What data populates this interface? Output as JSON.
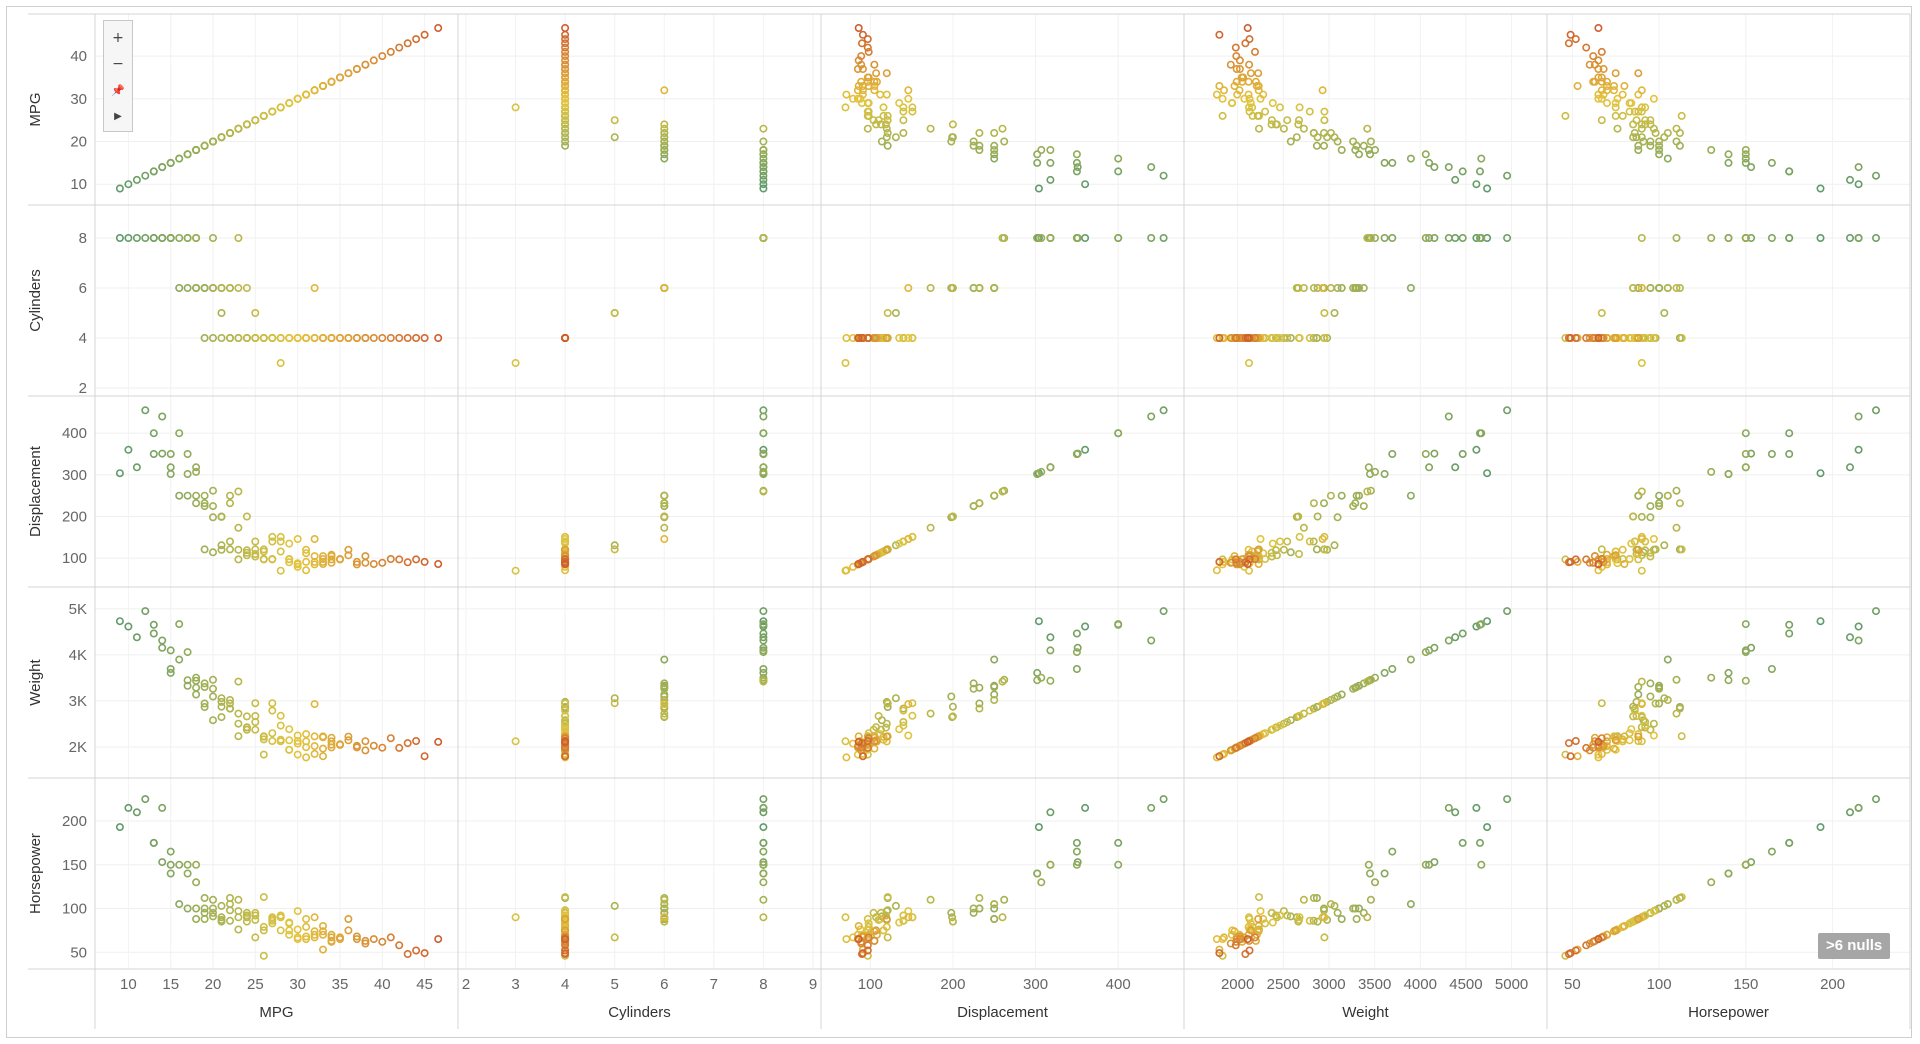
{
  "chart_data": {
    "type": "scatter",
    "layout": "scatterplot-matrix",
    "variables": [
      {
        "name": "MPG",
        "range": [
          7,
          48
        ],
        "ticks": [
          10,
          20,
          30,
          40
        ],
        "tick_labels": [
          "10",
          "20",
          "30",
          "40"
        ],
        "x_range": [
          7,
          48
        ],
        "x_ticks": [
          10,
          15,
          20,
          25,
          30,
          35,
          40,
          45
        ],
        "x_tick_labels": [
          "10",
          "15",
          "20",
          "25",
          "30",
          "35",
          "40",
          "45"
        ]
      },
      {
        "name": "Cylinders",
        "range": [
          2,
          9
        ],
        "ticks": [
          2,
          4,
          6,
          8
        ],
        "tick_labels": [
          "2",
          "4",
          "6",
          "8"
        ],
        "x_range": [
          2,
          9
        ],
        "x_ticks": [
          2,
          3,
          4,
          5,
          6,
          7,
          8,
          9
        ],
        "x_tick_labels": [
          "2",
          "3",
          "4",
          "5",
          "6",
          "7",
          "8",
          "9"
        ]
      },
      {
        "name": "Displacement",
        "range": [
          50,
          470
        ],
        "ticks": [
          100,
          200,
          300,
          400
        ],
        "tick_labels": [
          "100",
          "200",
          "300",
          "400"
        ],
        "x_range": [
          50,
          470
        ],
        "x_ticks": [
          100,
          200,
          300,
          400
        ],
        "x_tick_labels": [
          "100",
          "200",
          "300",
          "400"
        ]
      },
      {
        "name": "Weight",
        "range": [
          1500,
          5300
        ],
        "ticks": [
          2000,
          3000,
          4000,
          5000
        ],
        "tick_labels": [
          "2K",
          "3K",
          "4K",
          "5K"
        ],
        "x_range": [
          1500,
          5300
        ],
        "x_ticks": [
          2000,
          2500,
          3000,
          3500,
          4000,
          4500,
          5000
        ],
        "x_tick_labels": [
          "2000",
          "2500",
          "3000",
          "3500",
          "4000",
          "4500",
          "5000"
        ]
      },
      {
        "name": "Horsepower",
        "range": [
          40,
          240
        ],
        "ticks": [
          50,
          100,
          150,
          200
        ],
        "tick_labels": [
          "50",
          "100",
          "150",
          "200"
        ],
        "x_range": [
          40,
          240
        ],
        "x_ticks": [
          50,
          100,
          150,
          200
        ],
        "x_tick_labels": [
          "50",
          "100",
          "150",
          "200"
        ]
      }
    ],
    "color_by": "MPG",
    "color_scale": {
      "low": "#5e9a6b",
      "mid": "#e3c53d",
      "high": "#cf5d2e",
      "domain": [
        9,
        46.6
      ]
    },
    "records": [
      [
        9,
        8,
        304,
        4732,
        193
      ],
      [
        10,
        8,
        360,
        4615,
        215
      ],
      [
        11,
        8,
        318,
        4382,
        210
      ],
      [
        12,
        8,
        455,
        4951,
        225
      ],
      [
        13,
        8,
        350,
        4464,
        175
      ],
      [
        13,
        8,
        400,
        4654,
        175
      ],
      [
        14,
        8,
        440,
        4312,
        215
      ],
      [
        14,
        8,
        351,
        4154,
        153
      ],
      [
        15,
        8,
        350,
        3693,
        165
      ],
      [
        15,
        8,
        318,
        4096,
        150
      ],
      [
        15,
        8,
        302,
        3609,
        140
      ],
      [
        16,
        8,
        400,
        4668,
        150
      ],
      [
        16,
        6,
        250,
        3897,
        105
      ],
      [
        17,
        8,
        302,
        3449,
        140
      ],
      [
        17,
        6,
        250,
        3329,
        100
      ],
      [
        17,
        8,
        350,
        4060,
        150
      ],
      [
        18,
        8,
        318,
        3436,
        150
      ],
      [
        18,
        6,
        232,
        3288,
        100
      ],
      [
        18,
        6,
        250,
        3139,
        88
      ],
      [
        18,
        8,
        307,
        3504,
        130
      ],
      [
        19,
        6,
        225,
        3381,
        95
      ],
      [
        19,
        6,
        250,
        3302,
        88
      ],
      [
        19,
        4,
        121,
        2868,
        112
      ],
      [
        19,
        6,
        232,
        2945,
        100
      ],
      [
        20,
        6,
        225,
        3264,
        100
      ],
      [
        20,
        4,
        114,
        2582,
        91
      ],
      [
        20,
        6,
        198,
        3095,
        95
      ],
      [
        20,
        8,
        262,
        3459,
        110
      ],
      [
        21,
        6,
        200,
        2875,
        85
      ],
      [
        21,
        4,
        120,
        2979,
        87
      ],
      [
        21,
        6,
        199,
        2648,
        90
      ],
      [
        21,
        5,
        131,
        3060,
        103
      ],
      [
        22,
        6,
        250,
        3021,
        105
      ],
      [
        22,
        4,
        140,
        2833,
        86
      ],
      [
        22,
        6,
        232,
        2835,
        112
      ],
      [
        22,
        4,
        121,
        2945,
        98
      ],
      [
        23,
        4,
        97,
        2234,
        76
      ],
      [
        23,
        6,
        173,
        2725,
        110
      ],
      [
        23,
        4,
        120,
        2506,
        97
      ],
      [
        23,
        8,
        260,
        3420,
        90
      ],
      [
        24,
        4,
        113,
        2372,
        95
      ],
      [
        24,
        4,
        107,
        2430,
        90
      ],
      [
        24,
        6,
        200,
        2664,
        85
      ],
      [
        24,
        4,
        119,
        2420,
        92
      ],
      [
        25,
        4,
        104,
        2375,
        95
      ],
      [
        25,
        4,
        140,
        2542,
        92
      ],
      [
        25,
        4,
        110,
        2672,
        87
      ],
      [
        25,
        5,
        121,
        2950,
        67
      ],
      [
        26,
        4,
        97,
        1835,
        46
      ],
      [
        26,
        4,
        121,
        2234,
        113
      ],
      [
        26,
        4,
        116,
        2220,
        75
      ],
      [
        26,
        4,
        98,
        2164,
        79
      ],
      [
        27,
        4,
        97,
        2130,
        88
      ],
      [
        27,
        4,
        140,
        2790,
        86
      ],
      [
        27,
        4,
        151,
        2950,
        90
      ],
      [
        27,
        4,
        98,
        2300,
        83
      ],
      [
        28,
        4,
        140,
        2464,
        92
      ],
      [
        28,
        4,
        116,
        2158,
        75
      ],
      [
        28,
        4,
        151,
        2678,
        90
      ],
      [
        28,
        3,
        70,
        2124,
        90
      ],
      [
        29,
        4,
        90,
        1937,
        70
      ],
      [
        29,
        4,
        97,
        1940,
        75
      ],
      [
        29,
        4,
        98,
        2144,
        83
      ],
      [
        29,
        4,
        135,
        2385,
        84
      ],
      [
        30,
        4,
        79,
        2074,
        67
      ],
      [
        30,
        4,
        88,
        2130,
        76
      ],
      [
        30,
        4,
        146,
        2250,
        97
      ],
      [
        30,
        4,
        85,
        1835,
        65
      ],
      [
        31,
        4,
        71,
        1773,
        65
      ],
      [
        31,
        4,
        91,
        1995,
        68
      ],
      [
        31,
        4,
        112,
        2280,
        88
      ],
      [
        31,
        4,
        120,
        2120,
        79
      ],
      [
        32,
        4,
        85,
        2020,
        70
      ],
      [
        32,
        4,
        105,
        2230,
        74
      ],
      [
        32,
        4,
        91,
        1850,
        67
      ],
      [
        32,
        6,
        146,
        2930,
        90
      ],
      [
        33,
        4,
        91,
        1800,
        53
      ],
      [
        33,
        4,
        98,
        2210,
        70
      ],
      [
        33,
        4,
        105,
        1965,
        74
      ],
      [
        33,
        4,
        86,
        2230,
        80
      ],
      [
        34,
        4,
        89,
        2050,
        62
      ],
      [
        34,
        4,
        105,
        2200,
        63
      ],
      [
        34,
        4,
        97,
        1990,
        67
      ],
      [
        34,
        4,
        108,
        2120,
        70
      ],
      [
        35,
        4,
        97,
        2045,
        65
      ],
      [
        35,
        4,
        98,
        2060,
        67
      ],
      [
        36,
        4,
        120,
        2225,
        88
      ],
      [
        36,
        4,
        107,
        2145,
        75
      ],
      [
        37,
        4,
        91,
        2025,
        68
      ],
      [
        37,
        4,
        85,
        1990,
        65
      ],
      [
        38,
        4,
        89,
        1925,
        60
      ],
      [
        38,
        4,
        105,
        2125,
        63
      ],
      [
        39,
        4,
        86,
        2025,
        65
      ],
      [
        40,
        4,
        89,
        1985,
        62
      ],
      [
        41,
        4,
        98,
        2190,
        67
      ],
      [
        42,
        4,
        97,
        1980,
        58
      ],
      [
        43,
        4,
        90,
        2085,
        48
      ],
      [
        44,
        4,
        97,
        2130,
        52
      ],
      [
        45,
        4,
        91,
        1800,
        49
      ],
      [
        46.6,
        4,
        86,
        2110,
        65
      ]
    ]
  },
  "toolbar": {
    "zoom_in": "+",
    "zoom_out": "−",
    "pin": "📌",
    "expand": "▶"
  },
  "nulls_badge": ">6 nulls"
}
